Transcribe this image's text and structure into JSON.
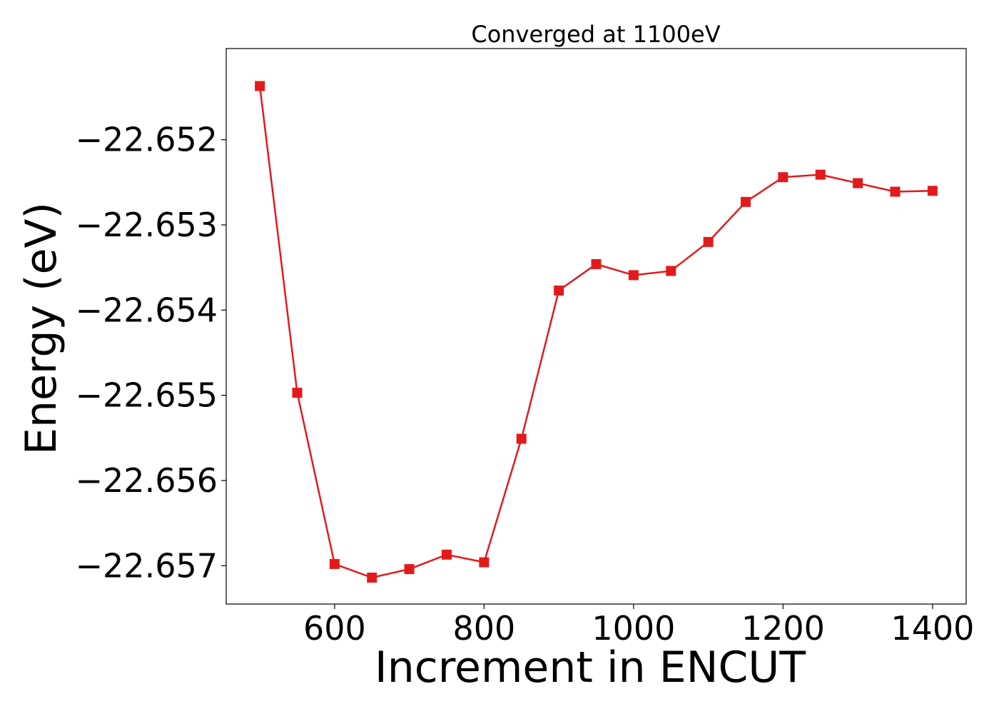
{
  "chart_data": {
    "type": "line",
    "title": "Converged at 1100eV",
    "xlabel": "Increment in ENCUT",
    "ylabel": "Energy (eV)",
    "xlim": [
      455,
      1445
    ],
    "ylim": [
      -22.65745,
      -22.65093
    ],
    "x_ticks": [
      600,
      800,
      1000,
      1200,
      1400
    ],
    "x_tick_labels": [
      "600",
      "800",
      "1000",
      "1200",
      "1400"
    ],
    "y_ticks": [
      -22.652,
      -22.653,
      -22.654,
      -22.655,
      -22.656,
      -22.657
    ],
    "y_tick_labels": [
      "−22.652",
      "−22.653",
      "−22.654",
      "−22.655",
      "−22.656",
      "−22.657"
    ],
    "grid": false,
    "series": [
      {
        "color": "#e31a1c",
        "marker": "square",
        "x": [
          500,
          550,
          600,
          650,
          700,
          750,
          800,
          850,
          900,
          950,
          1000,
          1050,
          1100,
          1150,
          1200,
          1250,
          1300,
          1350,
          1400
        ],
        "values": [
          -22.65137,
          -22.65497,
          -22.65698,
          -22.65714,
          -22.65704,
          -22.65687,
          -22.65696,
          -22.65551,
          -22.65377,
          -22.65346,
          -22.65359,
          -22.65354,
          -22.6532,
          -22.65273,
          -22.65244,
          -22.65241,
          -22.65251,
          -22.65261,
          -22.6526
        ]
      }
    ]
  }
}
